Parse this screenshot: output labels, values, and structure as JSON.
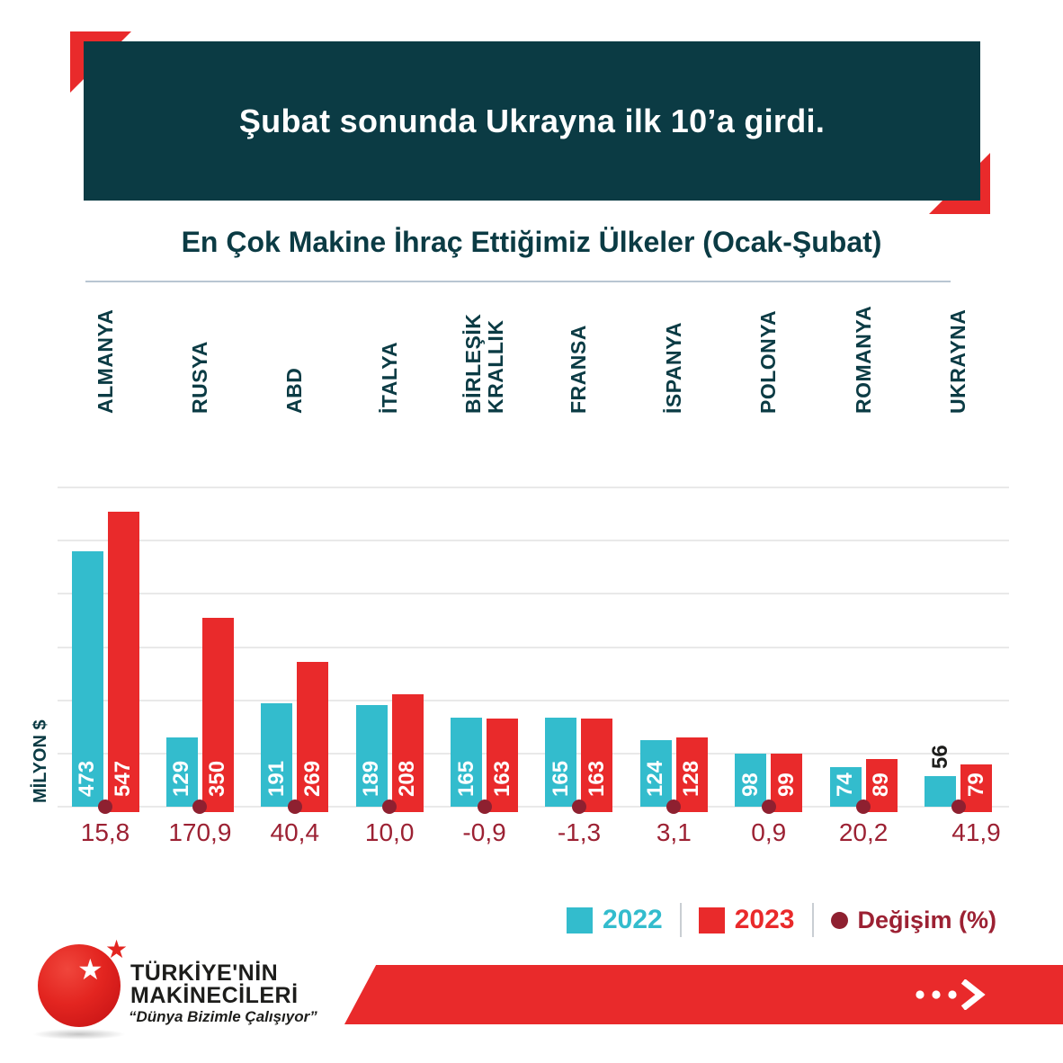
{
  "header": {
    "title": "Şubat sonunda Ukrayna ilk 10’a girdi."
  },
  "chart_data": {
    "type": "bar",
    "title": "En Çok Makine İhraç Ettiğimiz Ülkeler (Ocak-Şubat)",
    "categories": [
      "ALMANYA",
      "RUSYA",
      "ABD",
      "İTALYA",
      "BİRLEŞİK KRALLIK",
      "FRANSA",
      "İSPANYA",
      "POLONYA",
      "ROMANYA",
      "UKRAYNA"
    ],
    "series": [
      {
        "name": "2022",
        "color": "#33bccd",
        "values": [
          473,
          129,
          191,
          189,
          165,
          165,
          124,
          98,
          74,
          56
        ]
      },
      {
        "name": "2023",
        "color": "#e92a2b",
        "values": [
          547,
          350,
          269,
          208,
          163,
          163,
          128,
          99,
          89,
          79
        ]
      }
    ],
    "change_label": "Değişim (%)",
    "change_percent": [
      "15,8",
      "170,9",
      "40,4",
      "10,0",
      "-0,9",
      "-1,3",
      "3,1",
      "0,9",
      "20,2",
      "41,9"
    ],
    "ylabel": "MİLYON $",
    "ylim": [
      0,
      600
    ],
    "grid": true,
    "gridline_step": 100,
    "legend_position": "bottom-right"
  },
  "legend": {
    "items": [
      {
        "label": "2022",
        "color": "#33bccd",
        "marker": "square"
      },
      {
        "label": "2023",
        "color": "#e92a2b",
        "marker": "square"
      },
      {
        "label": "Değişim (%)",
        "color": "#9c2133",
        "marker": "dot"
      }
    ]
  },
  "footer": {
    "brand_line1": "TÜRKİYE'NİN",
    "brand_line2": "MAKİNECİLERİ",
    "tagline": "“Dünya Bizimle Çalışıyor”",
    "arrow": "...>"
  },
  "colors": {
    "banner_bg": "#0b3b44",
    "accent_red": "#e92a2b",
    "bar_2022": "#33bccd",
    "bar_2023": "#e92a2b",
    "change_maroon": "#9c2133",
    "dot_maroon": "#8e2030",
    "gridline": "#e9e9e9"
  }
}
